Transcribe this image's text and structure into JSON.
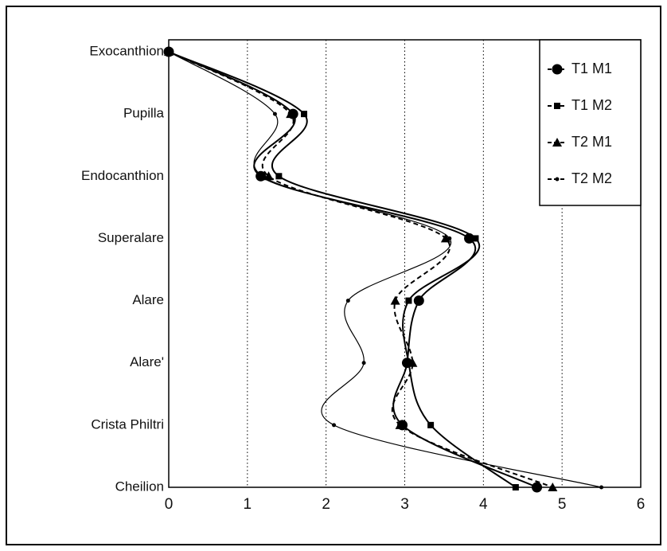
{
  "chart_data": {
    "type": "line",
    "orientation": "horizontal",
    "categories": [
      "Exocanthion",
      "Pupilla",
      "Endocanthion",
      "Superalare",
      "Alare",
      "Alare'",
      "Crista Philtri",
      "Cheilion"
    ],
    "series": [
      {
        "name": "T1 M1",
        "color": "#000000",
        "marker": "circle",
        "dash": "solid",
        "values": [
          0,
          1.58,
          1.17,
          3.82,
          3.18,
          3.03,
          2.97,
          4.68
        ]
      },
      {
        "name": "T1 M2",
        "color": "#000000",
        "marker": "square",
        "dash": "solid",
        "values": [
          0,
          1.72,
          1.4,
          3.9,
          3.05,
          3.05,
          3.33,
          4.41
        ]
      },
      {
        "name": "T2 M1",
        "color": "#000000",
        "marker": "triangle",
        "dash": "dashed",
        "values": [
          0,
          1.55,
          1.27,
          3.52,
          2.88,
          3.1,
          2.94,
          4.88
        ]
      },
      {
        "name": "T2 M2",
        "color": "#000000",
        "marker": "dot",
        "dash": "solid",
        "values": [
          0,
          1.35,
          1.19,
          3.57,
          2.28,
          2.48,
          2.1,
          5.5
        ]
      }
    ],
    "xlim": [
      0,
      6
    ],
    "xticks": [
      0,
      1,
      2,
      3,
      4,
      5,
      6
    ],
    "grid": true,
    "legend": "upper right"
  }
}
